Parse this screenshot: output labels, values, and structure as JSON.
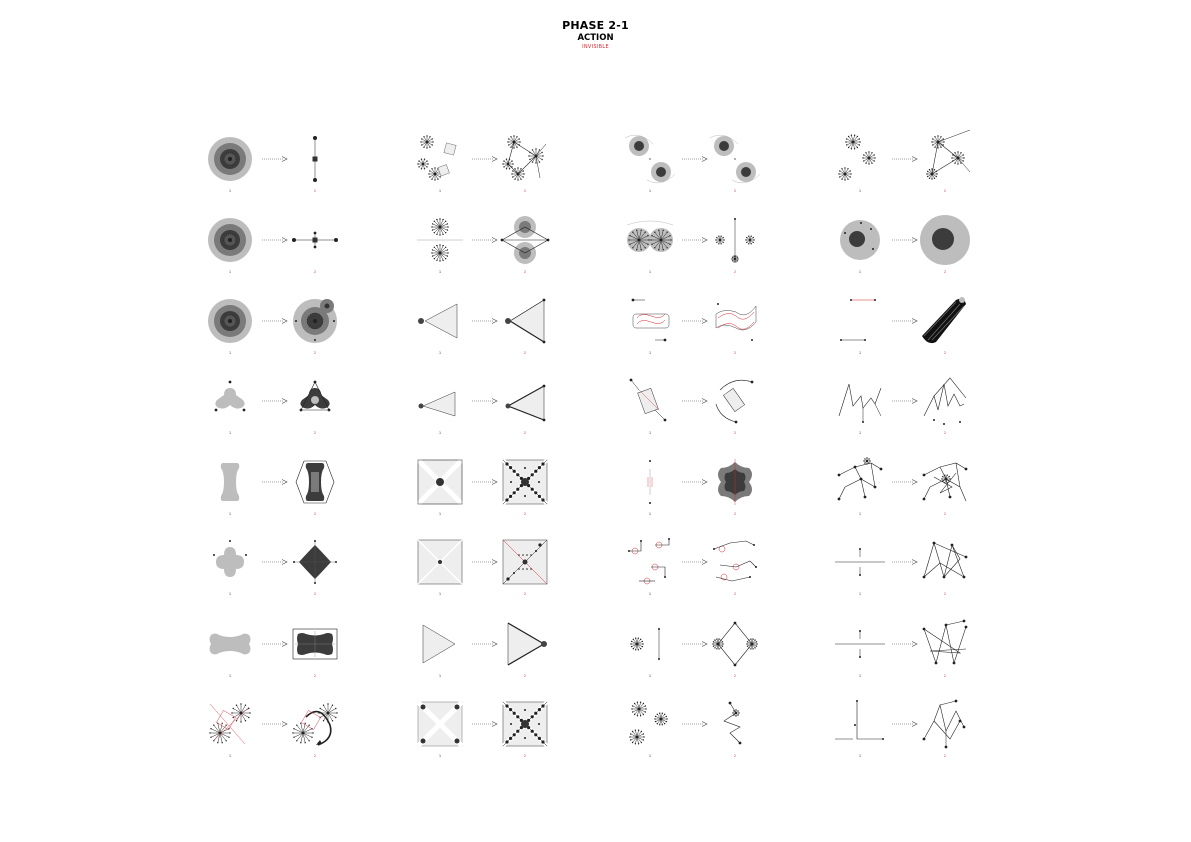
{
  "header": {
    "title": "PHASE 2-1",
    "subtitle": "ACTION",
    "tag": "INVISIBLE"
  },
  "colors": {
    "accent": "#e0262e",
    "dark": "#3c3c3c",
    "mid": "#7a7a7a",
    "light": "#bdbdbd",
    "pale": "#eeeeee"
  },
  "grid": {
    "columns": [
      {
        "items": [
          {
            "before": {
              "num": "1",
              "type": "circleA"
            },
            "after": {
              "num": "2",
              "type": "crossDots"
            }
          },
          {
            "before": {
              "num": "1",
              "type": "circleA"
            },
            "after": {
              "num": "2",
              "type": "crossDots2"
            }
          },
          {
            "before": {
              "num": "1",
              "type": "circleA"
            },
            "after": {
              "num": "2",
              "type": "circleTarget"
            }
          },
          {
            "before": {
              "num": "1",
              "type": "tri3"
            },
            "after": {
              "num": "2",
              "type": "tri3b"
            }
          },
          {
            "before": {
              "num": "1",
              "type": "bone"
            },
            "after": {
              "num": "2",
              "type": "boneHex"
            }
          },
          {
            "before": {
              "num": "1",
              "type": "plus4"
            },
            "after": {
              "num": "2",
              "type": "diamond4"
            }
          },
          {
            "before": {
              "num": "1",
              "type": "boneH"
            },
            "after": {
              "num": "2",
              "type": "rectBone"
            }
          },
          {
            "before": {
              "num": "1",
              "type": "bursts2r"
            },
            "after": {
              "num": "2",
              "type": "bursts2arrow"
            }
          }
        ]
      },
      {
        "items": [
          {
            "before": {
              "num": "1",
              "type": "flowers"
            },
            "after": {
              "num": "2",
              "type": "flowerNet"
            }
          },
          {
            "before": {
              "num": "1",
              "type": "burstLine"
            },
            "after": {
              "num": "2",
              "type": "burstCircles"
            }
          },
          {
            "before": {
              "num": "1",
              "type": "triDot"
            },
            "after": {
              "num": "2",
              "type": "triOutline"
            }
          },
          {
            "before": {
              "num": "1",
              "type": "triDotS"
            },
            "after": {
              "num": "2",
              "type": "triOutlineS"
            }
          },
          {
            "before": {
              "num": "1",
              "type": "sqX"
            },
            "after": {
              "num": "2",
              "type": "sqXdots"
            }
          },
          {
            "before": {
              "num": "1",
              "type": "sqDiag"
            },
            "after": {
              "num": "2",
              "type": "sqDiagDots"
            }
          },
          {
            "before": {
              "num": "1",
              "type": "triR"
            },
            "after": {
              "num": "2",
              "type": "triRDot"
            }
          },
          {
            "before": {
              "num": "1",
              "type": "sqX4"
            },
            "after": {
              "num": "2",
              "type": "sqXdots"
            }
          }
        ]
      },
      {
        "items": [
          {
            "before": {
              "num": "1",
              "type": "twoCircles"
            },
            "after": {
              "num": "2",
              "type": "twoCircles"
            }
          },
          {
            "before": {
              "num": "1",
              "type": "twinBurst"
            },
            "after": {
              "num": "2",
              "type": "burstLineDots"
            }
          },
          {
            "before": {
              "num": "1",
              "type": "redWave"
            },
            "after": {
              "num": "2",
              "type": "redWave2"
            }
          },
          {
            "before": {
              "num": "1",
              "type": "rectRot"
            },
            "after": {
              "num": "2",
              "type": "rectArc"
            }
          },
          {
            "before": {
              "num": "1",
              "type": "dotsV"
            },
            "after": {
              "num": "2",
              "type": "blob"
            }
          },
          {
            "before": {
              "num": "1",
              "type": "scatterRed"
            },
            "after": {
              "num": "2",
              "type": "scatterRed2"
            }
          },
          {
            "before": {
              "num": "1",
              "type": "burstV"
            },
            "after": {
              "num": "2",
              "type": "diamondBurst"
            }
          },
          {
            "before": {
              "num": "1",
              "type": "bursts3"
            },
            "after": {
              "num": "2",
              "type": "zigzagV"
            }
          }
        ]
      },
      {
        "items": [
          {
            "before": {
              "num": "1",
              "type": "bursts3b"
            },
            "after": {
              "num": "2",
              "type": "burstNet"
            }
          },
          {
            "before": {
              "num": "1",
              "type": "circleDots"
            },
            "after": {
              "num": "2",
              "type": "circleBig"
            }
          },
          {
            "before": {
              "num": "1",
              "type": "lineRed"
            },
            "after": {
              "num": "2",
              "type": "blackBand"
            }
          },
          {
            "before": {
              "num": "1",
              "type": "zigzag"
            },
            "after": {
              "num": "2",
              "type": "zigzag2"
            }
          },
          {
            "before": {
              "num": "1",
              "type": "network"
            },
            "after": {
              "num": "2",
              "type": "network2"
            }
          },
          {
            "before": {
              "num": "1",
              "type": "crossLine"
            },
            "after": {
              "num": "2",
              "type": "starNet"
            }
          },
          {
            "before": {
              "num": "1",
              "type": "crossLine"
            },
            "after": {
              "num": "2",
              "type": "starNet2"
            }
          },
          {
            "before": {
              "num": "1",
              "type": "corner"
            },
            "after": {
              "num": "2",
              "type": "starNet3"
            }
          }
        ]
      }
    ]
  }
}
